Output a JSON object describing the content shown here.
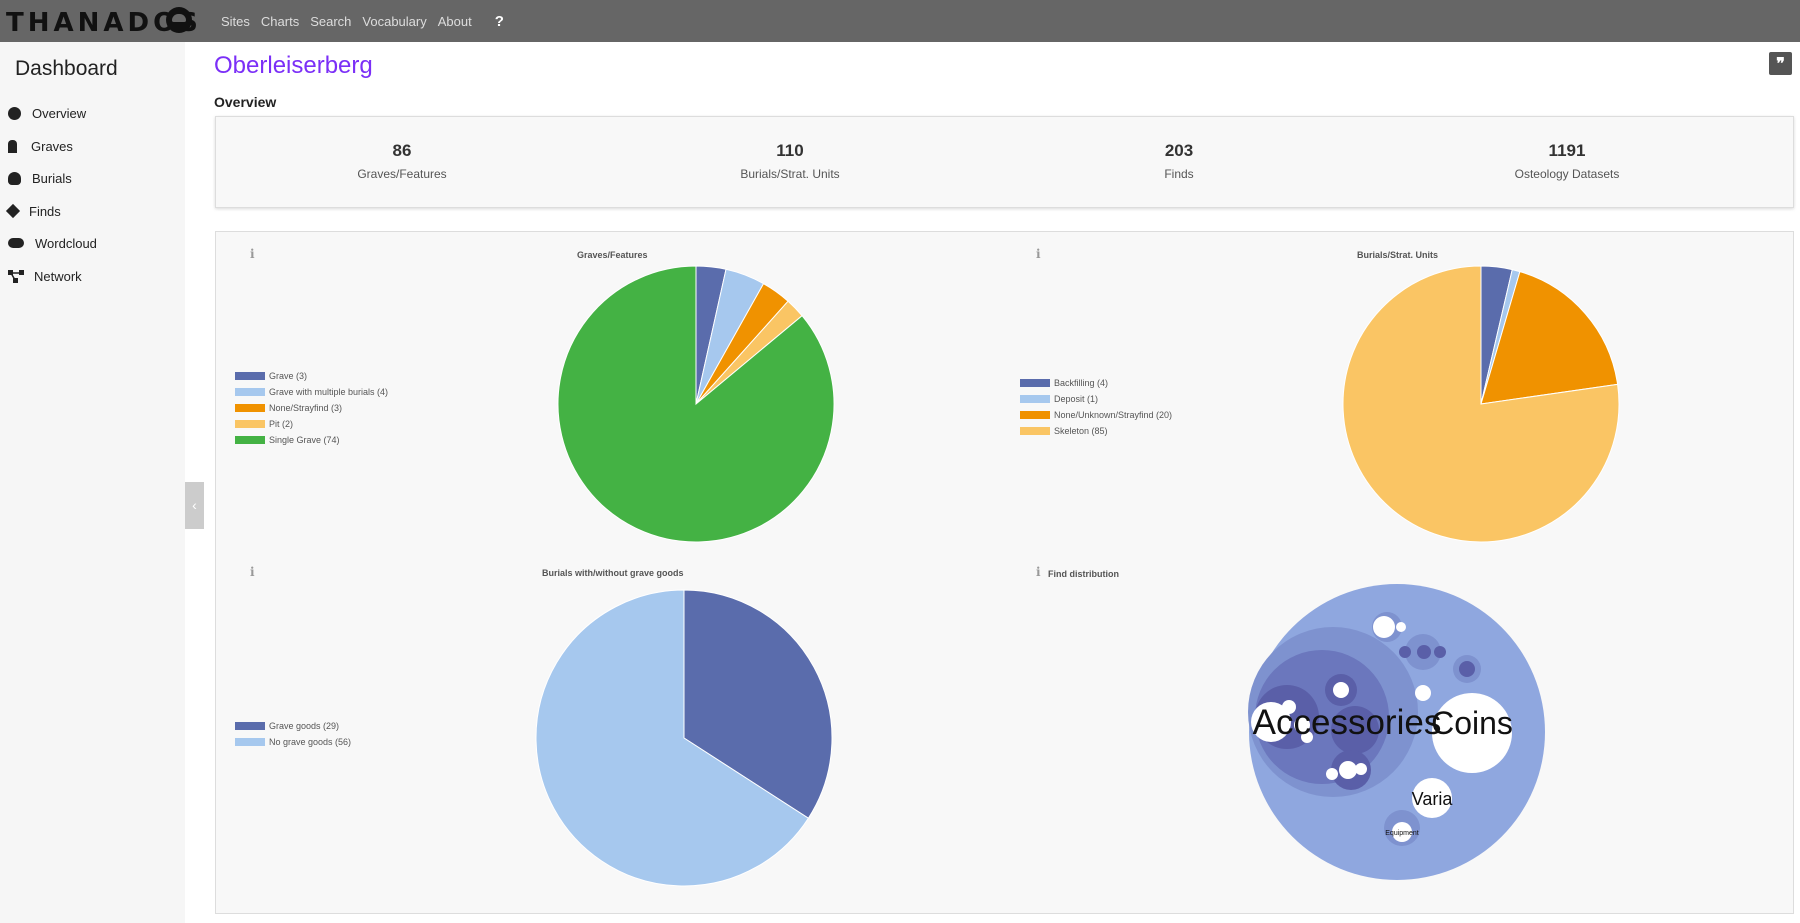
{
  "app": {
    "logo_text": "THANADOS",
    "nav": [
      "Sites",
      "Charts",
      "Search",
      "Vocabulary",
      "About"
    ],
    "help_label": "?"
  },
  "sidebar": {
    "title": "Dashboard",
    "items": [
      {
        "label": "Overview",
        "icon": "info-circle-icon"
      },
      {
        "label": "Graves",
        "icon": "grave-icon"
      },
      {
        "label": "Burials",
        "icon": "skull-icon"
      },
      {
        "label": "Finds",
        "icon": "diamond-icon"
      },
      {
        "label": "Wordcloud",
        "icon": "cloud-icon"
      },
      {
        "label": "Network",
        "icon": "network-icon"
      }
    ],
    "collapse_icon": "chevron-left-icon"
  },
  "page": {
    "title": "Oberleiserberg",
    "section": "Overview",
    "cite_icon": "quote-icon"
  },
  "stats": [
    {
      "value": "86",
      "label": "Graves/Features"
    },
    {
      "value": "110",
      "label": "Burials/Strat. Units"
    },
    {
      "value": "203",
      "label": "Finds"
    },
    {
      "value": "1191",
      "label": "Osteology Datasets"
    }
  ],
  "colors": {
    "dark_blue": "#5a6cac",
    "light_blue": "#a6c8ee",
    "orange": "#f09200",
    "light_orange": "#fac564",
    "green": "#44b244",
    "title_purple": "#7b2ff7"
  },
  "chart_data": [
    {
      "type": "pie",
      "title": "Graves/Features",
      "info_icon": "info-icon",
      "legend_position": "left",
      "slices": [
        {
          "label": "Grave",
          "value": 3,
          "legend": "Grave (3)",
          "color": "#5a6cac"
        },
        {
          "label": "Grave with multiple burials",
          "value": 4,
          "legend": "Grave with multiple burials (4)",
          "color": "#a6c8ee"
        },
        {
          "label": "None/Strayfind",
          "value": 3,
          "legend": "None/Strayfind (3)",
          "color": "#f09200"
        },
        {
          "label": "Pit",
          "value": 2,
          "legend": "Pit (2)",
          "color": "#fac564"
        },
        {
          "label": "Single Grave",
          "value": 74,
          "legend": "Single Grave (74)",
          "color": "#44b244"
        }
      ]
    },
    {
      "type": "pie",
      "title": "Burials/Strat. Units",
      "info_icon": "info-icon",
      "legend_position": "left",
      "slices": [
        {
          "label": "Backfilling",
          "value": 4,
          "legend": "Backfilling (4)",
          "color": "#5a6cac"
        },
        {
          "label": "Deposit",
          "value": 1,
          "legend": "Deposit (1)",
          "color": "#a6c8ee"
        },
        {
          "label": "None/Unknown/Strayfind",
          "value": 20,
          "legend": "None/Unknown/Strayfind (20)",
          "color": "#f09200"
        },
        {
          "label": "Skeleton",
          "value": 85,
          "legend": "Skeleton (85)",
          "color": "#fac564"
        }
      ]
    },
    {
      "type": "pie",
      "title": "Burials with/without grave goods",
      "info_icon": "info-icon",
      "legend_position": "left",
      "slices": [
        {
          "label": "Grave goods",
          "value": 29,
          "legend": "Grave goods (29)",
          "color": "#5a6cac"
        },
        {
          "label": "No grave goods",
          "value": 56,
          "legend": "No grave goods (56)",
          "color": "#a6c8ee"
        }
      ]
    },
    {
      "type": "bubble",
      "title": "Find distribution",
      "info_icon": "info-icon",
      "labels": [
        "Accessories",
        "Coins",
        "Varia",
        "Equipment"
      ]
    }
  ]
}
